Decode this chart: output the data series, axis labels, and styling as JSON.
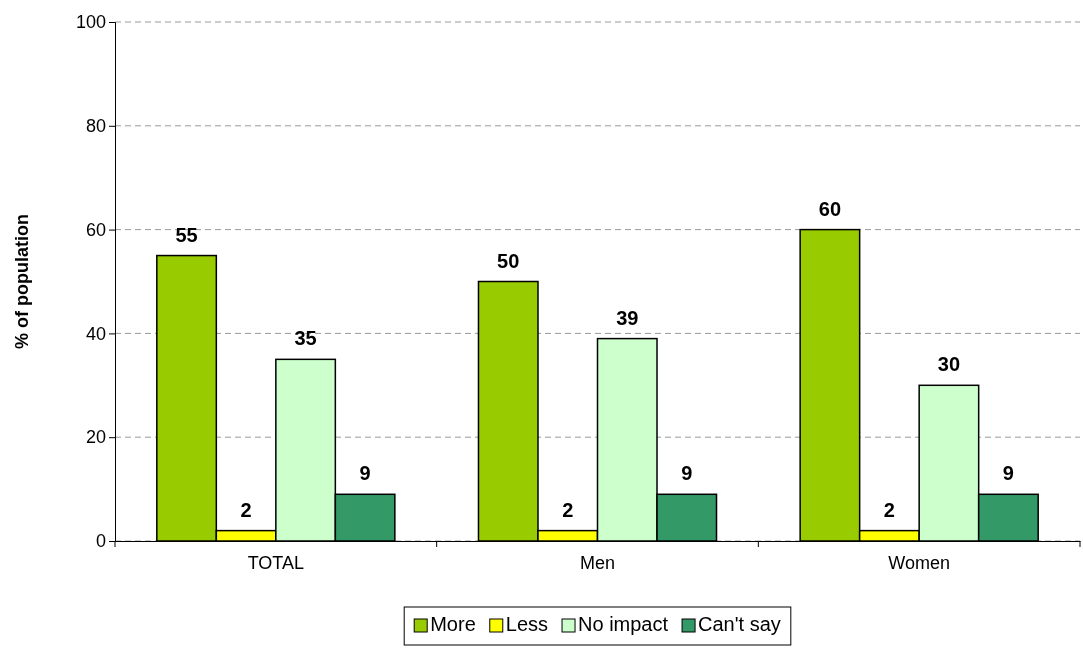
{
  "chart_data": {
    "type": "bar",
    "ylabel": "% of population",
    "categories": [
      "TOTAL",
      "Men",
      "Women"
    ],
    "series": [
      {
        "name": "More",
        "color": "#99cc00",
        "values": [
          55,
          50,
          60
        ]
      },
      {
        "name": "Less",
        "color": "#ffff00",
        "values": [
          2,
          2,
          2
        ]
      },
      {
        "name": "No impact",
        "color": "#ccffcc",
        "values": [
          35,
          39,
          30
        ]
      },
      {
        "name": "Can't say",
        "color": "#339966",
        "values": [
          9,
          9,
          9
        ]
      }
    ],
    "ylim": [
      0,
      100
    ],
    "yticks": [
      0,
      20,
      40,
      60,
      80,
      100
    ],
    "grid": "y",
    "legend": "bottom",
    "data_labels": true
  }
}
